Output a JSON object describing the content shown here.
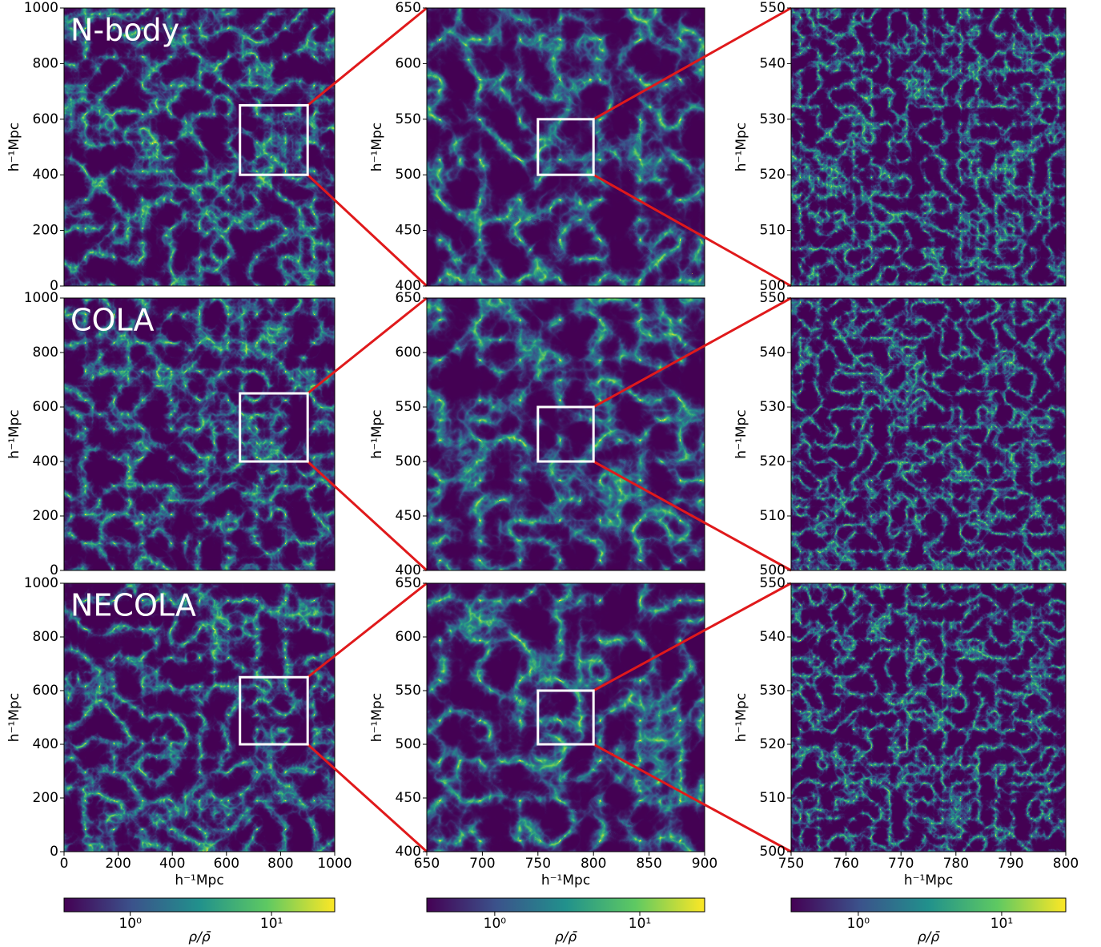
{
  "chart_data": [
    {
      "type": "density-map",
      "title": "N-body",
      "ylabel": "h⁻¹Mpc",
      "xlim": [
        0,
        1000
      ],
      "ylim": [
        0,
        1000
      ],
      "yticks": [
        0,
        200,
        400,
        600,
        800,
        1000
      ]
    },
    {
      "type": "density-map",
      "ylabel": "h⁻¹Mpc",
      "xlim": [
        650,
        900
      ],
      "ylim": [
        400,
        650
      ],
      "yticks": [
        400,
        450,
        500,
        550,
        600,
        650
      ]
    },
    {
      "type": "density-map",
      "ylabel": "h⁻¹Mpc",
      "xlim": [
        750,
        800
      ],
      "ylim": [
        500,
        550
      ],
      "yticks": [
        500,
        510,
        520,
        530,
        540,
        550
      ]
    },
    {
      "type": "density-map",
      "title": "COLA",
      "ylabel": "h⁻¹Mpc",
      "xlim": [
        0,
        1000
      ],
      "ylim": [
        0,
        1000
      ],
      "yticks": [
        0,
        200,
        400,
        600,
        800,
        1000
      ]
    },
    {
      "type": "density-map",
      "ylabel": "h⁻¹Mpc",
      "xlim": [
        650,
        900
      ],
      "ylim": [
        400,
        650
      ],
      "yticks": [
        400,
        450,
        500,
        550,
        600,
        650
      ]
    },
    {
      "type": "density-map",
      "ylabel": "h⁻¹Mpc",
      "xlim": [
        750,
        800
      ],
      "ylim": [
        500,
        550
      ],
      "yticks": [
        500,
        510,
        520,
        530,
        540,
        550
      ]
    },
    {
      "type": "density-map",
      "title": "NECOLA",
      "ylabel": "h⁻¹Mpc",
      "xlabel": "h⁻¹Mpc",
      "xlim": [
        0,
        1000
      ],
      "ylim": [
        0,
        1000
      ],
      "xticks": [
        0,
        200,
        400,
        600,
        800,
        1000
      ],
      "yticks": [
        0,
        200,
        400,
        600,
        800,
        1000
      ]
    },
    {
      "type": "density-map",
      "ylabel": "h⁻¹Mpc",
      "xlabel": "h⁻¹Mpc",
      "xlim": [
        650,
        900
      ],
      "ylim": [
        400,
        650
      ],
      "xticks": [
        650,
        700,
        750,
        800,
        850,
        900
      ],
      "yticks": [
        400,
        450,
        500,
        550,
        600,
        650
      ]
    },
    {
      "type": "density-map",
      "ylabel": "h⁻¹Mpc",
      "xlabel": "h⁻¹Mpc",
      "xlim": [
        750,
        800
      ],
      "ylim": [
        500,
        550
      ],
      "xticks": [
        750,
        760,
        770,
        780,
        790,
        800
      ],
      "yticks": [
        500,
        510,
        520,
        530,
        540,
        550
      ]
    },
    {
      "type": "colorbar",
      "label": "ρ/ρ̄",
      "log_scale": true,
      "xlim": [
        0.34,
        28
      ],
      "xticks": [
        {
          "value": 1,
          "label": "10⁰"
        },
        {
          "value": 10,
          "label": "10¹"
        }
      ],
      "colormap": [
        "#440154",
        "#3b528b",
        "#21918c",
        "#5ec962",
        "#fde725"
      ]
    },
    {
      "type": "colorbar",
      "label": "ρ/ρ̄",
      "log_scale": true,
      "xlim": [
        0.34,
        28
      ],
      "xticks": [
        {
          "value": 1,
          "label": "10⁰"
        },
        {
          "value": 10,
          "label": "10¹"
        }
      ],
      "colormap": [
        "#440154",
        "#3b528b",
        "#21918c",
        "#5ec962",
        "#fde725"
      ]
    },
    {
      "type": "colorbar",
      "label": "ρ/ρ̄",
      "log_scale": true,
      "xlim": [
        0.34,
        28
      ],
      "xticks": [
        {
          "value": 1,
          "label": "10⁰"
        },
        {
          "value": 10,
          "label": "10¹"
        }
      ],
      "colormap": [
        "#440154",
        "#3b528b",
        "#21918c",
        "#5ec962",
        "#fde725"
      ]
    }
  ]
}
